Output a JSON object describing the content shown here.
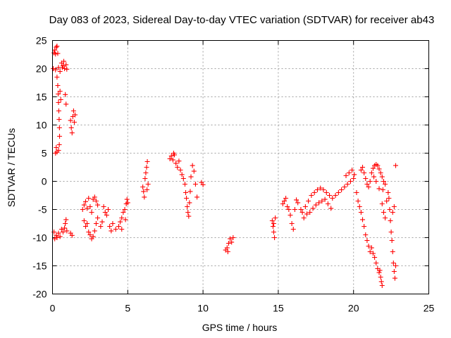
{
  "chart_data": {
    "type": "scatter",
    "title": "Day 083 of 2023, Sidereal Day-to-day VTEC variation (SDTVAR) for receiver ab43",
    "xlabel": "GPS time / hours",
    "ylabel": "SDTVAR / TECUs",
    "xlim": [
      0,
      25
    ],
    "ylim": [
      -20,
      25
    ],
    "xticks": [
      "0",
      "5",
      "10",
      "15",
      "20",
      "25"
    ],
    "yticks": [
      "-20",
      "-15",
      "-10",
      "-5",
      "0",
      "5",
      "10",
      "15",
      "20",
      "25"
    ],
    "grid": true,
    "marker": "+",
    "series": [
      {
        "name": "SDTVAR",
        "color": "#ff0000",
        "points": [
          [
            0.05,
            20.0
          ],
          [
            0.1,
            22.8
          ],
          [
            0.15,
            23.3
          ],
          [
            0.2,
            22.6
          ],
          [
            0.25,
            23.8
          ],
          [
            0.3,
            24.0
          ],
          [
            0.35,
            22.7
          ],
          [
            0.2,
            19.8
          ],
          [
            0.4,
            20.2
          ],
          [
            0.5,
            19.5
          ],
          [
            0.6,
            21.0
          ],
          [
            0.7,
            20.5
          ],
          [
            0.8,
            20.0
          ],
          [
            0.9,
            20.7
          ],
          [
            0.95,
            19.9
          ],
          [
            0.65,
            20.2
          ],
          [
            0.75,
            21.3
          ],
          [
            0.3,
            18.5
          ],
          [
            0.35,
            17.0
          ],
          [
            0.38,
            15.5
          ],
          [
            0.4,
            14.0
          ],
          [
            0.42,
            12.5
          ],
          [
            0.44,
            11.0
          ],
          [
            0.46,
            9.5
          ],
          [
            0.47,
            8.0
          ],
          [
            0.45,
            6.5
          ],
          [
            0.4,
            5.5
          ],
          [
            0.3,
            5.2
          ],
          [
            0.2,
            5.0
          ],
          [
            0.25,
            6.0
          ],
          [
            0.5,
            16.0
          ],
          [
            0.55,
            14.5
          ],
          [
            0.85,
            15.4
          ],
          [
            0.9,
            13.7
          ],
          [
            1.2,
            10.8
          ],
          [
            1.25,
            9.5
          ],
          [
            1.3,
            8.6
          ],
          [
            1.35,
            11.5
          ],
          [
            1.4,
            12.5
          ],
          [
            1.45,
            10.5
          ],
          [
            1.5,
            11.8
          ],
          [
            0.1,
            -9.0
          ],
          [
            0.15,
            -10.2
          ],
          [
            0.25,
            -9.6
          ],
          [
            0.3,
            -10.0
          ],
          [
            0.4,
            -9.2
          ],
          [
            0.5,
            -9.8
          ],
          [
            0.6,
            -8.5
          ],
          [
            0.7,
            -9.0
          ],
          [
            0.8,
            -8.3
          ],
          [
            0.85,
            -7.5
          ],
          [
            0.9,
            -6.8
          ],
          [
            0.95,
            -8.8
          ],
          [
            1.2,
            -9.2
          ],
          [
            1.3,
            -9.6
          ],
          [
            2.0,
            -5.0
          ],
          [
            2.1,
            -4.2
          ],
          [
            2.2,
            -3.6
          ],
          [
            2.3,
            -4.8
          ],
          [
            2.4,
            -3.0
          ],
          [
            2.5,
            -4.5
          ],
          [
            2.6,
            -5.5
          ],
          [
            2.7,
            -3.2
          ],
          [
            2.8,
            -2.8
          ],
          [
            2.9,
            -3.5
          ],
          [
            3.0,
            -4.2
          ],
          [
            2.1,
            -7.0
          ],
          [
            2.2,
            -8.0
          ],
          [
            2.3,
            -7.5
          ],
          [
            2.4,
            -9.0
          ],
          [
            2.5,
            -9.5
          ],
          [
            2.6,
            -10.2
          ],
          [
            2.7,
            -9.8
          ],
          [
            2.8,
            -8.8
          ],
          [
            2.9,
            -7.5
          ],
          [
            3.0,
            -6.5
          ],
          [
            3.2,
            -8.0
          ],
          [
            3.3,
            -7.2
          ],
          [
            3.4,
            -4.5
          ],
          [
            3.5,
            -5.5
          ],
          [
            3.6,
            -6.0
          ],
          [
            3.7,
            -5.0
          ],
          [
            3.8,
            -8.0
          ],
          [
            3.9,
            -8.8
          ],
          [
            4.0,
            -7.5
          ],
          [
            4.2,
            -8.5
          ],
          [
            4.4,
            -8.0
          ],
          [
            4.5,
            -7.2
          ],
          [
            4.6,
            -6.5
          ],
          [
            4.7,
            -5.5
          ],
          [
            4.8,
            -5.0
          ],
          [
            4.9,
            -4.0
          ],
          [
            4.95,
            -3.2
          ],
          [
            5.0,
            -3.8
          ],
          [
            4.85,
            -6.8
          ],
          [
            4.6,
            -8.5
          ],
          [
            6.0,
            -1.0
          ],
          [
            6.05,
            -1.8
          ],
          [
            6.1,
            -2.8
          ],
          [
            6.15,
            0.5
          ],
          [
            6.2,
            1.5
          ],
          [
            6.25,
            2.5
          ],
          [
            6.3,
            3.5
          ],
          [
            6.35,
            -0.5
          ],
          [
            6.28,
            -1.5
          ],
          [
            7.8,
            4.0
          ],
          [
            7.9,
            4.5
          ],
          [
            8.0,
            3.8
          ],
          [
            8.05,
            5.0
          ],
          [
            8.1,
            4.7
          ],
          [
            8.2,
            3.2
          ],
          [
            8.3,
            2.5
          ],
          [
            8.4,
            3.6
          ],
          [
            8.5,
            2.0
          ],
          [
            8.6,
            1.2
          ],
          [
            8.7,
            0.5
          ],
          [
            8.8,
            -0.5
          ],
          [
            8.85,
            -2.0
          ],
          [
            8.9,
            -3.0
          ],
          [
            8.95,
            -4.5
          ],
          [
            9.0,
            -5.5
          ],
          [
            9.05,
            -6.2
          ],
          [
            9.1,
            -3.8
          ],
          [
            9.15,
            -1.8
          ],
          [
            9.2,
            0.8
          ],
          [
            9.3,
            2.8
          ],
          [
            9.4,
            1.8
          ],
          [
            9.5,
            -0.5
          ],
          [
            9.6,
            -2.8
          ],
          [
            9.9,
            -0.2
          ],
          [
            10.0,
            -0.6
          ],
          [
            11.5,
            -12.2
          ],
          [
            11.6,
            -11.8
          ],
          [
            11.7,
            -11.0
          ],
          [
            11.8,
            -10.2
          ],
          [
            11.9,
            -10.8
          ],
          [
            12.0,
            -10.0
          ],
          [
            11.65,
            -12.5
          ],
          [
            14.6,
            -7.0
          ],
          [
            14.65,
            -8.0
          ],
          [
            14.7,
            -9.0
          ],
          [
            14.75,
            -10.0
          ],
          [
            14.8,
            -6.5
          ],
          [
            14.7,
            -7.5
          ],
          [
            15.3,
            -4.0
          ],
          [
            15.4,
            -3.5
          ],
          [
            15.5,
            -3.0
          ],
          [
            15.6,
            -4.5
          ],
          [
            15.7,
            -5.0
          ],
          [
            15.8,
            -6.0
          ],
          [
            15.9,
            -7.5
          ],
          [
            16.0,
            -8.5
          ],
          [
            16.1,
            -5.0
          ],
          [
            16.2,
            -3.3
          ],
          [
            16.3,
            -3.8
          ],
          [
            16.5,
            -5.0
          ],
          [
            16.7,
            -6.5
          ],
          [
            16.9,
            -5.8
          ],
          [
            17.1,
            -5.5
          ],
          [
            17.3,
            -4.8
          ],
          [
            17.5,
            -4.2
          ],
          [
            17.7,
            -3.8
          ],
          [
            17.9,
            -3.5
          ],
          [
            18.1,
            -3.2
          ],
          [
            18.3,
            -4.0
          ],
          [
            18.5,
            -4.8
          ],
          [
            16.6,
            -5.5
          ],
          [
            16.8,
            -4.5
          ],
          [
            17.0,
            -3.5
          ],
          [
            17.2,
            -2.5
          ],
          [
            17.4,
            -2.0
          ],
          [
            17.6,
            -1.5
          ],
          [
            17.8,
            -1.2
          ],
          [
            18.0,
            -1.5
          ],
          [
            18.2,
            -2.0
          ],
          [
            18.4,
            -2.5
          ],
          [
            18.6,
            -3.0
          ],
          [
            18.8,
            -2.5
          ],
          [
            19.0,
            -2.0
          ],
          [
            19.2,
            -1.5
          ],
          [
            19.4,
            -1.0
          ],
          [
            19.6,
            -0.5
          ],
          [
            19.8,
            0.0
          ],
          [
            20.0,
            0.5
          ],
          [
            19.5,
            1.0
          ],
          [
            19.7,
            1.5
          ],
          [
            19.9,
            2.0
          ],
          [
            20.05,
            1.2
          ],
          [
            20.2,
            -2.0
          ],
          [
            20.3,
            -3.5
          ],
          [
            20.4,
            -4.5
          ],
          [
            20.5,
            -5.5
          ],
          [
            20.6,
            -6.8
          ],
          [
            20.7,
            -8.0
          ],
          [
            20.8,
            -9.5
          ],
          [
            20.9,
            -10.5
          ],
          [
            21.0,
            -11.5
          ],
          [
            21.1,
            -12.5
          ],
          [
            21.2,
            -11.8
          ],
          [
            21.3,
            -12.8
          ],
          [
            21.4,
            -13.5
          ],
          [
            21.5,
            -14.5
          ],
          [
            21.6,
            -15.5
          ],
          [
            21.7,
            -16.2
          ],
          [
            21.8,
            -17.0
          ],
          [
            21.9,
            -18.5
          ],
          [
            21.85,
            -17.8
          ],
          [
            21.75,
            -15.8
          ],
          [
            20.5,
            2.0
          ],
          [
            20.6,
            2.5
          ],
          [
            20.7,
            1.5
          ],
          [
            20.8,
            0.5
          ],
          [
            20.9,
            -0.5
          ],
          [
            21.0,
            -1.0
          ],
          [
            21.1,
            0.0
          ],
          [
            21.2,
            1.5
          ],
          [
            21.3,
            2.3
          ],
          [
            21.4,
            2.8
          ],
          [
            21.5,
            3.0
          ],
          [
            21.6,
            2.8
          ],
          [
            21.7,
            2.2
          ],
          [
            21.8,
            1.5
          ],
          [
            21.9,
            0.8
          ],
          [
            22.0,
            0.0
          ],
          [
            22.1,
            -0.5
          ],
          [
            21.95,
            -1.5
          ],
          [
            21.7,
            -1.3
          ],
          [
            21.5,
            0.0
          ],
          [
            21.35,
            0.8
          ],
          [
            21.9,
            -4.0
          ],
          [
            22.0,
            -5.5
          ],
          [
            22.1,
            -6.5
          ],
          [
            22.2,
            -3.5
          ],
          [
            22.3,
            -2.0
          ],
          [
            22.35,
            -3.0
          ],
          [
            22.4,
            -5.0
          ],
          [
            22.45,
            -7.0
          ],
          [
            22.5,
            -9.0
          ],
          [
            22.55,
            -10.5
          ],
          [
            22.6,
            -12.5
          ],
          [
            22.65,
            -14.5
          ],
          [
            22.7,
            -16.0
          ],
          [
            22.75,
            -17.2
          ],
          [
            22.8,
            -15.0
          ],
          [
            22.6,
            -5.5
          ],
          [
            22.7,
            -4.5
          ],
          [
            22.8,
            2.8
          ]
        ]
      }
    ]
  }
}
